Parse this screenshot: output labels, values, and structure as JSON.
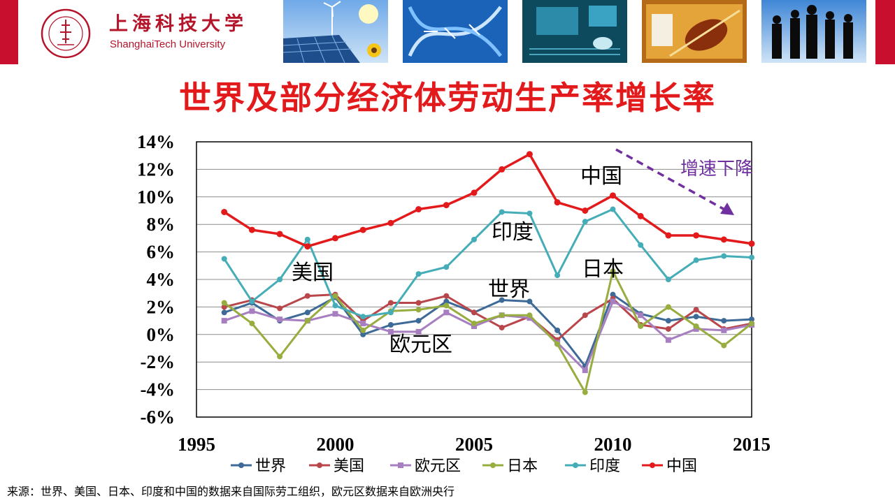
{
  "header": {
    "university_cn": "上海科技大学",
    "university_en": "ShanghaiTech University"
  },
  "title": "世界及部分经济体劳动生产率增长率",
  "source_note": "来源：世界、美国、日本、印度和中国的数据来自国际劳工组织，欧元区数据来自欧洲央行",
  "chart_data": {
    "type": "line",
    "x": [
      1996,
      1997,
      1998,
      1999,
      2000,
      2001,
      2002,
      2003,
      2004,
      2005,
      2006,
      2007,
      2008,
      2009,
      2010,
      2011,
      2012,
      2013,
      2014,
      2015
    ],
    "x_ticks": [
      1995,
      2000,
      2005,
      2010,
      2015
    ],
    "x_tick_labels": [
      "1995",
      "2000",
      "2005",
      "2010",
      "2015"
    ],
    "xlim": [
      1995,
      2015
    ],
    "ylim": [
      -6,
      14
    ],
    "y_ticks": [
      -6,
      -4,
      -2,
      0,
      2,
      4,
      6,
      8,
      10,
      12,
      14
    ],
    "y_tick_labels": [
      "-6%",
      "-4%",
      "-2%",
      "0%",
      "2%",
      "4%",
      "6%",
      "8%",
      "10%",
      "12%",
      "14%"
    ],
    "grid": true,
    "legend_position": "bottom",
    "series": [
      {
        "name": "世界",
        "color": "#3d6a97",
        "values": [
          1.6,
          2.3,
          1.0,
          1.6,
          2.7,
          0.0,
          0.7,
          1.0,
          2.4,
          1.6,
          2.5,
          2.4,
          0.3,
          -2.3,
          2.9,
          1.5,
          1.0,
          1.3,
          1.0,
          1.1
        ]
      },
      {
        "name": "美国",
        "color": "#b9464a",
        "values": [
          2.0,
          2.5,
          1.9,
          2.8,
          2.9,
          1.0,
          2.3,
          2.3,
          2.8,
          1.6,
          0.5,
          1.3,
          -0.4,
          1.4,
          2.6,
          0.7,
          0.4,
          1.8,
          0.4,
          0.8
        ]
      },
      {
        "name": "欧元区",
        "color": "#a77fc1",
        "values": [
          1.0,
          1.7,
          1.1,
          1.0,
          1.5,
          0.8,
          0.2,
          0.2,
          1.6,
          0.6,
          1.4,
          1.2,
          -0.6,
          -2.6,
          2.4,
          1.4,
          -0.4,
          0.4,
          0.3,
          0.7
        ]
      },
      {
        "name": "日本",
        "color": "#98ad3f",
        "values": [
          2.3,
          0.8,
          -1.6,
          1.0,
          2.8,
          0.3,
          1.7,
          1.8,
          2.1,
          0.8,
          1.4,
          1.4,
          -0.7,
          -4.2,
          4.6,
          0.6,
          2.0,
          0.6,
          -0.8,
          0.8
        ]
      },
      {
        "name": "印度",
        "color": "#45adb7",
        "values": [
          5.5,
          2.4,
          4.0,
          6.9,
          2.1,
          1.3,
          1.6,
          4.4,
          4.9,
          6.9,
          8.9,
          8.8,
          4.3,
          8.2,
          9.1,
          6.5,
          4.0,
          5.4,
          5.7,
          5.6
        ]
      },
      {
        "name": "中国",
        "color": "#e31a1c",
        "values": [
          8.9,
          7.6,
          7.3,
          6.4,
          7.0,
          7.6,
          8.1,
          9.1,
          9.4,
          10.3,
          12.0,
          13.1,
          9.6,
          9.0,
          10.1,
          8.6,
          7.2,
          7.2,
          6.9,
          6.6
        ]
      }
    ],
    "annotations": [
      {
        "text": "中国",
        "color": "#000000"
      },
      {
        "text": "印度",
        "color": "#000000"
      },
      {
        "text": "美国",
        "color": "#000000"
      },
      {
        "text": "世界",
        "color": "#000000"
      },
      {
        "text": "日本",
        "color": "#000000"
      },
      {
        "text": "欧元区",
        "color": "#000000"
      },
      {
        "text": "增速下降",
        "color": "#7030a0"
      }
    ]
  }
}
